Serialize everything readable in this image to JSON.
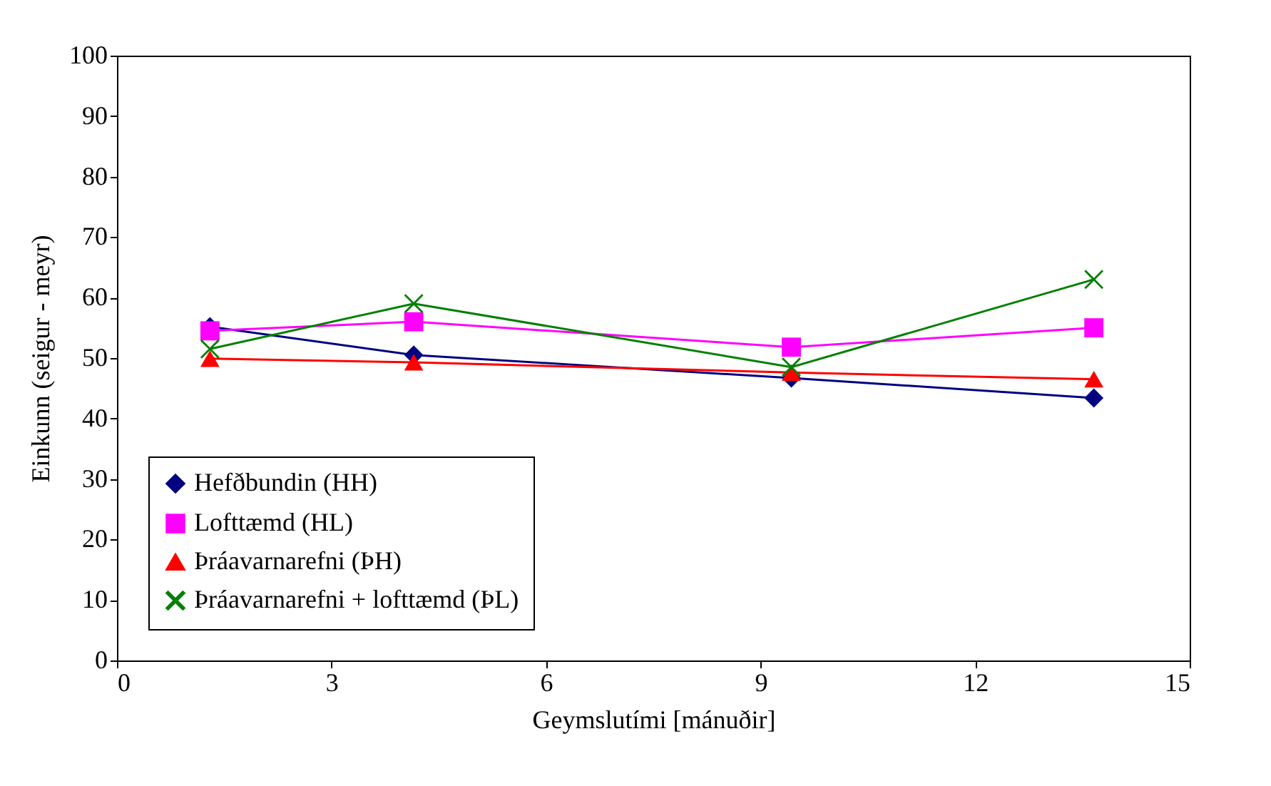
{
  "chart_data": {
    "type": "line",
    "xlabel": "Geymslutími [mánuðir]",
    "ylabel": "Einkunn (seigur - meyr)",
    "xlim": [
      0,
      15
    ],
    "xticks": [
      0,
      3,
      6,
      9,
      12,
      15
    ],
    "ylim": [
      0,
      100
    ],
    "yticks": [
      0,
      10,
      20,
      30,
      40,
      50,
      60,
      70,
      80,
      90,
      100
    ],
    "x": [
      1.3,
      4.15,
      9.43,
      13.66
    ],
    "legend": "bottom left",
    "series": [
      {
        "name": "Hefðbundin (HH)",
        "color": "#000080",
        "marker": "diamond",
        "values": [
          55.2,
          50.5,
          46.7,
          43.4
        ]
      },
      {
        "name": "Lofttæmd (HL)",
        "color": "#ff00ff",
        "marker": "square",
        "values": [
          54.5,
          56,
          51.8,
          55
        ]
      },
      {
        "name": "Þráavarnarefni (ÞH)",
        "color": "#ff0000",
        "marker": "triangle",
        "values": [
          49.9,
          49.3,
          47.6,
          46.5
        ]
      },
      {
        "name": "Þráavarnarefni + lofttæmd (ÞL)",
        "color": "#008000",
        "marker": "cross",
        "values": [
          51.5,
          59,
          48.5,
          63
        ]
      }
    ]
  }
}
